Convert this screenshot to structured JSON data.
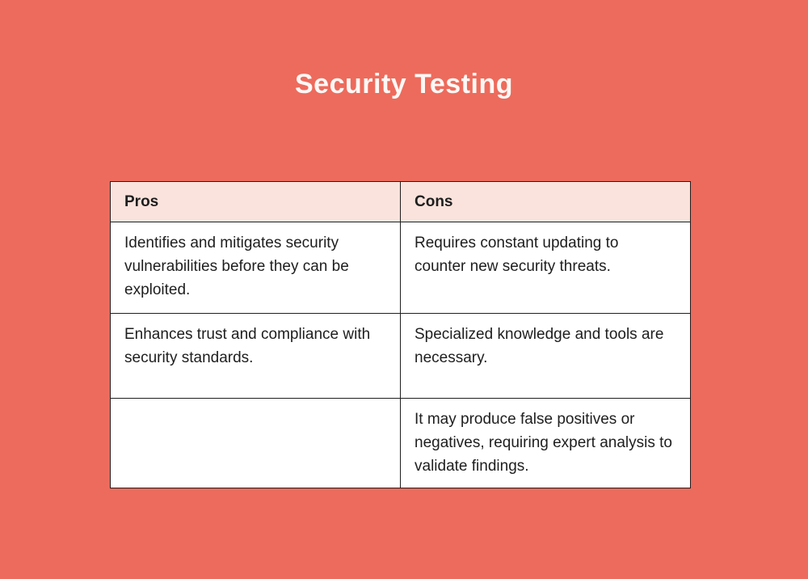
{
  "title": "Security Testing",
  "colors": {
    "background": "#ED6B5C",
    "header_bg": "#FAE3DC",
    "cell_bg": "#FFFFFF",
    "border": "#1F1F1F",
    "title_text": "#FCF8F6",
    "body_text": "#1E1E1E"
  },
  "table": {
    "headers": [
      "Pros",
      "Cons"
    ],
    "rows": [
      {
        "pros": "Identifies and mitigates security vulnerabilities before they can be exploited.",
        "cons": "Requires constant updating to counter new security threats."
      },
      {
        "pros": "Enhances trust and compliance with security standards.",
        "cons": "Specialized knowledge and tools are necessary."
      },
      {
        "pros": "",
        "cons": "It may produce false positives or negatives, requiring expert analysis to validate findings."
      }
    ]
  }
}
